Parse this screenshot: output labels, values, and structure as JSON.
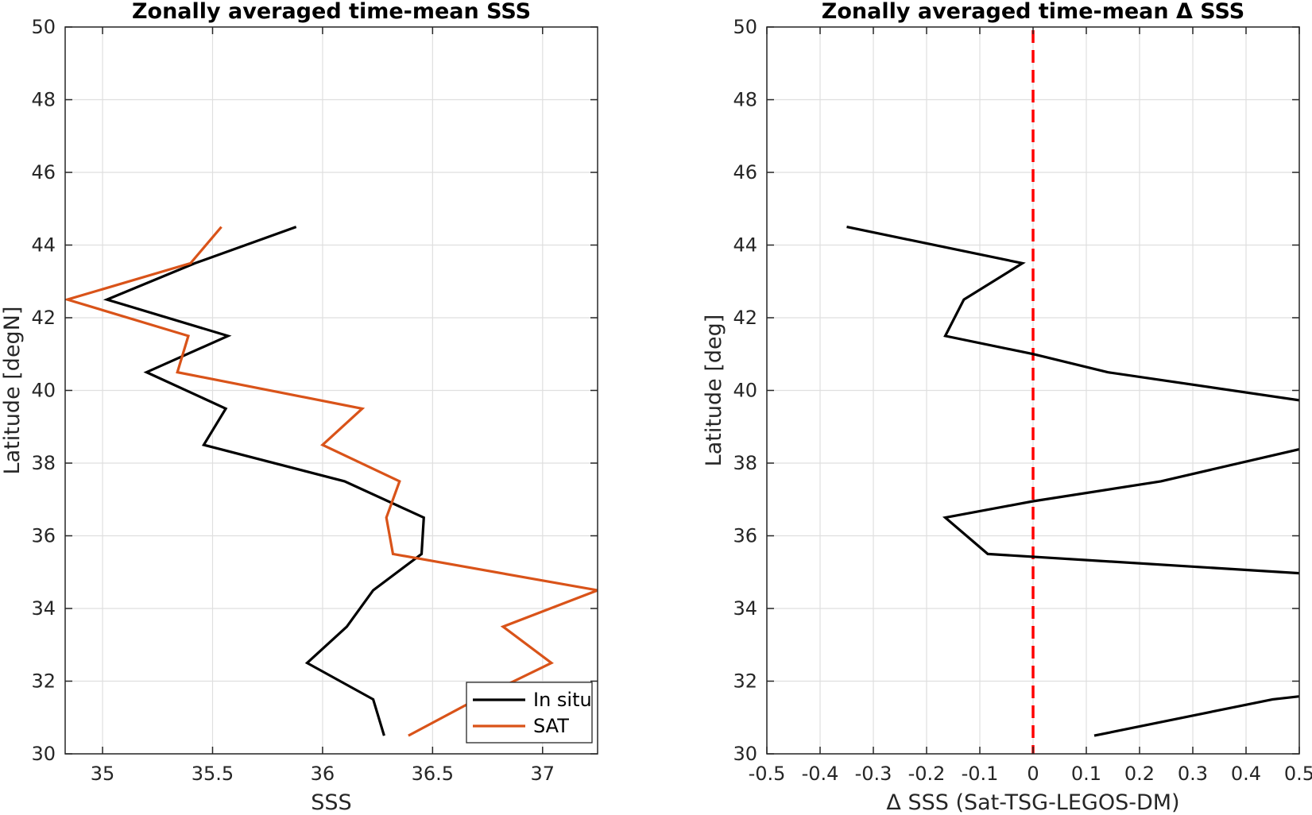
{
  "chart_data": [
    {
      "type": "line",
      "title": "Zonally averaged time-mean SSS",
      "xlabel": "SSS",
      "ylabel": "Latitude [degN]",
      "xlim": [
        34.83,
        37.25
      ],
      "ylim": [
        30,
        50
      ],
      "xticks": [
        35,
        35.5,
        36,
        36.5,
        37
      ],
      "xtick_labels": [
        "35",
        "35.5",
        "36",
        "36.5",
        "37"
      ],
      "yticks": [
        30,
        32,
        34,
        36,
        38,
        40,
        42,
        44,
        46,
        48,
        50
      ],
      "ytick_labels": [
        "30",
        "32",
        "34",
        "36",
        "38",
        "40",
        "42",
        "44",
        "46",
        "48",
        "50"
      ],
      "grid": true,
      "legend_position": "bottom-right",
      "series": [
        {
          "name": "In situ",
          "color": "#000000",
          "points": [
            [
              35.88,
              44.5
            ],
            [
              35.42,
              43.5
            ],
            [
              35.02,
              42.5
            ],
            [
              35.57,
              41.5
            ],
            [
              35.2,
              40.5
            ],
            [
              35.56,
              39.5
            ],
            [
              35.46,
              38.5
            ],
            [
              36.1,
              37.5
            ],
            [
              36.46,
              36.5
            ],
            [
              36.45,
              35.5
            ],
            [
              36.23,
              34.5
            ],
            [
              36.11,
              33.5
            ],
            [
              35.93,
              32.5
            ],
            [
              36.23,
              31.5
            ],
            [
              36.28,
              30.5
            ]
          ]
        },
        {
          "name": "SAT",
          "color": "#d95319",
          "points": [
            [
              35.54,
              44.5
            ],
            [
              35.4,
              43.5
            ],
            [
              34.84,
              42.5
            ],
            [
              35.39,
              41.5
            ],
            [
              35.34,
              40.5
            ],
            [
              36.18,
              39.5
            ],
            [
              36.0,
              38.5
            ],
            [
              36.35,
              37.5
            ],
            [
              36.29,
              36.5
            ],
            [
              36.32,
              35.5
            ],
            [
              37.25,
              34.5
            ],
            [
              36.82,
              33.5
            ],
            [
              37.04,
              32.5
            ],
            [
              36.7,
              31.5
            ],
            [
              36.39,
              30.5
            ]
          ]
        }
      ]
    },
    {
      "type": "line",
      "title": "Zonally averaged time-mean Δ SSS",
      "xlabel": "Δ SSS (Sat-TSG-LEGOS-DM)",
      "ylabel": "Latitude [deg]",
      "xlim": [
        -0.5,
        0.5
      ],
      "ylim": [
        30,
        50
      ],
      "xticks": [
        -0.5,
        -0.4,
        -0.3,
        -0.2,
        -0.1,
        0,
        0.1,
        0.2,
        0.3,
        0.4,
        0.5
      ],
      "xtick_labels": [
        "-0.5",
        "-0.4",
        "-0.3",
        "-0.2",
        "-0.1",
        "0",
        "0.1",
        "0.2",
        "0.3",
        "0.4",
        "0.5"
      ],
      "yticks": [
        30,
        32,
        34,
        36,
        38,
        40,
        42,
        44,
        46,
        48,
        50
      ],
      "ytick_labels": [
        "30",
        "32",
        "34",
        "36",
        "38",
        "40",
        "42",
        "44",
        "46",
        "48",
        "50"
      ],
      "grid": true,
      "reference_line": {
        "x": 0,
        "color": "#ff0000",
        "style": "dashed"
      },
      "series": [
        {
          "color": "#000000",
          "segments": [
            [
              [
                -0.35,
                44.5
              ],
              [
                -0.02,
                43.5
              ],
              [
                -0.13,
                42.5
              ],
              [
                -0.165,
                41.5
              ],
              [
                0.0,
                41.0
              ],
              [
                0.14,
                40.5
              ],
              [
                0.5,
                39.73
              ]
            ],
            [
              [
                0.5,
                38.38
              ],
              [
                0.24,
                37.5
              ],
              [
                0.0,
                36.95
              ],
              [
                -0.165,
                36.5
              ],
              [
                -0.085,
                35.5
              ],
              [
                0.5,
                34.97
              ]
            ],
            [
              [
                0.5,
                31.58
              ],
              [
                0.45,
                31.5
              ],
              [
                0.115,
                30.5
              ]
            ]
          ]
        }
      ]
    }
  ]
}
